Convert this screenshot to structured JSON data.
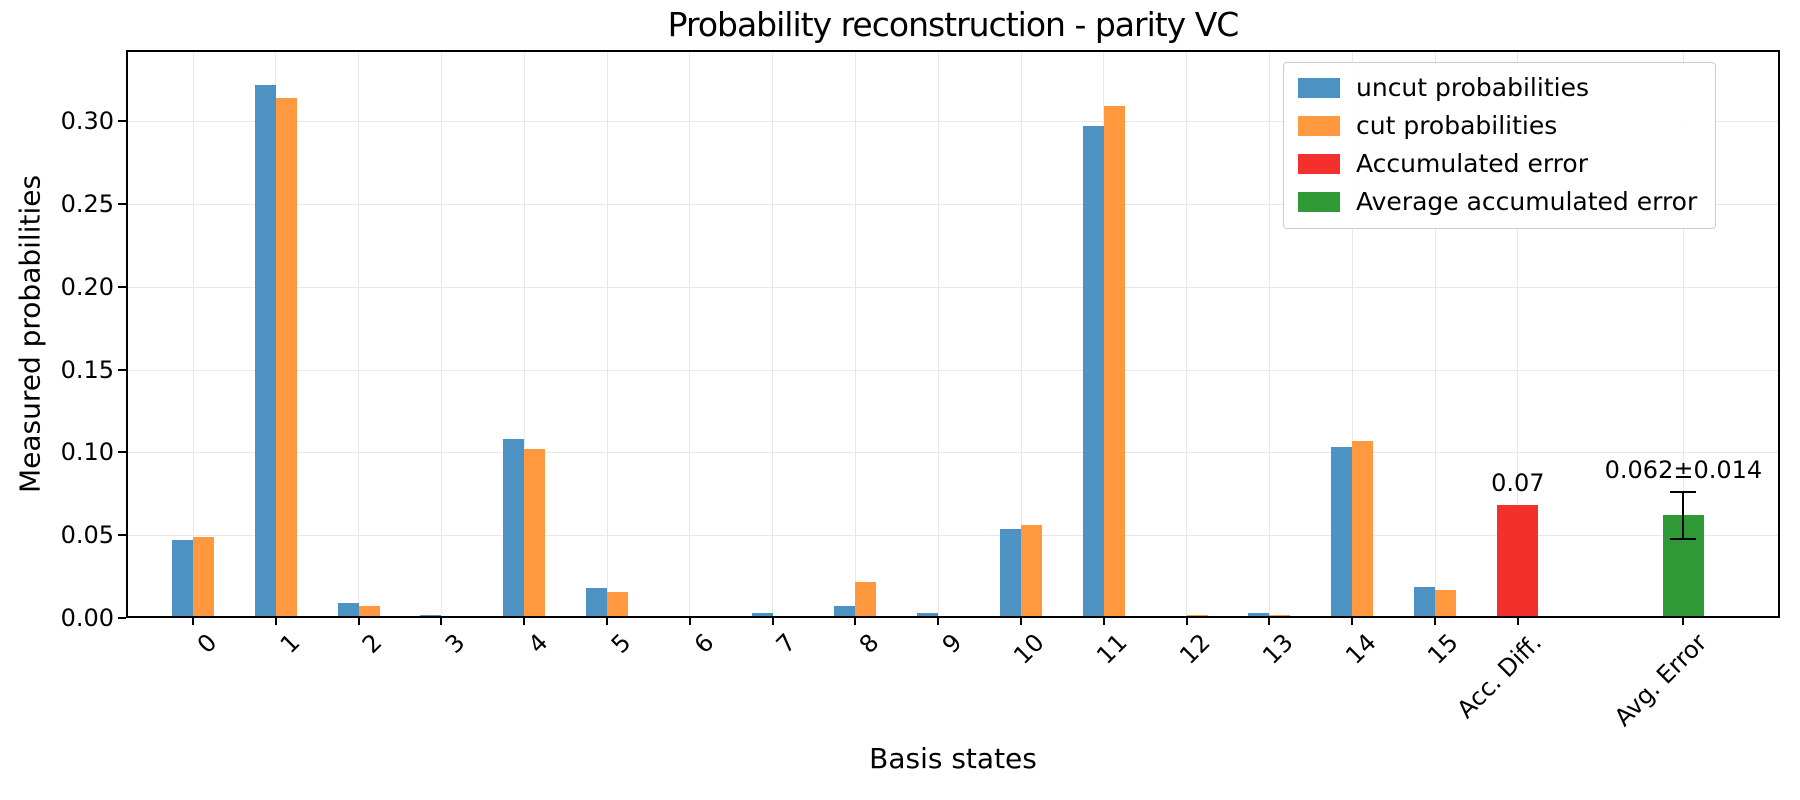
{
  "chart_data": {
    "type": "bar",
    "title": "Probability reconstruction - parity VC",
    "xlabel": "Basis states",
    "ylabel": "Measured probabilities",
    "categories": [
      "0",
      "1",
      "2",
      "3",
      "4",
      "5",
      "6",
      "7",
      "8",
      "9",
      "10",
      "11",
      "12",
      "13",
      "14",
      "15",
      "Acc. Diff.",
      "Avg. Error"
    ],
    "category_slots": [
      0,
      1,
      2,
      3,
      4,
      5,
      6,
      7,
      8,
      9,
      10,
      11,
      12,
      13,
      14,
      15,
      16,
      18
    ],
    "slot_count": 19,
    "ylim": [
      0,
      0.343
    ],
    "yticks": [
      0,
      0.05,
      0.1,
      0.15,
      0.2,
      0.25,
      0.3
    ],
    "ytick_labels": [
      "0.00",
      "0.05",
      "0.10",
      "0.15",
      "0.20",
      "0.25",
      "0.30"
    ],
    "grid": true,
    "legend_position": "upper right",
    "series": [
      {
        "key": "uncut",
        "name": "uncut probabilities",
        "color": "#4c92c3",
        "slots": [
          0,
          1,
          2,
          3,
          4,
          5,
          6,
          7,
          8,
          9,
          10,
          11,
          12,
          13,
          14,
          15
        ],
        "values": [
          0.047,
          0.322,
          0.009,
          0.002,
          0.108,
          0.018,
          0.001,
          0.003,
          0.007,
          0.003,
          0.054,
          0.297,
          0.001,
          0.003,
          0.103,
          0.019
        ]
      },
      {
        "key": "cut",
        "name": "cut probabilities",
        "color": "#ff983e",
        "slots": [
          0,
          1,
          2,
          3,
          4,
          5,
          6,
          7,
          8,
          9,
          10,
          11,
          12,
          13,
          14,
          15
        ],
        "values": [
          0.049,
          0.314,
          0.007,
          0.0005,
          0.102,
          0.016,
          0.0005,
          0.0005,
          0.022,
          0.0005,
          0.056,
          0.309,
          0.002,
          0.002,
          0.107,
          0.017
        ]
      },
      {
        "key": "acc_diff",
        "name": "Accumulated error",
        "color": "#f3302c",
        "slots": [
          16
        ],
        "values": [
          0.068
        ],
        "wide": true
      },
      {
        "key": "avg_error",
        "name": "Average accumulated error",
        "color": "#2f9a35",
        "slots": [
          18
        ],
        "values": [
          0.062
        ],
        "error": [
          0.014
        ],
        "wide": true
      }
    ],
    "annotations": [
      {
        "text": "0.07",
        "slot": 16,
        "anchor_value": 0.068
      },
      {
        "text": "0.062±0.014",
        "slot": 18,
        "anchor_value": 0.076
      }
    ]
  }
}
